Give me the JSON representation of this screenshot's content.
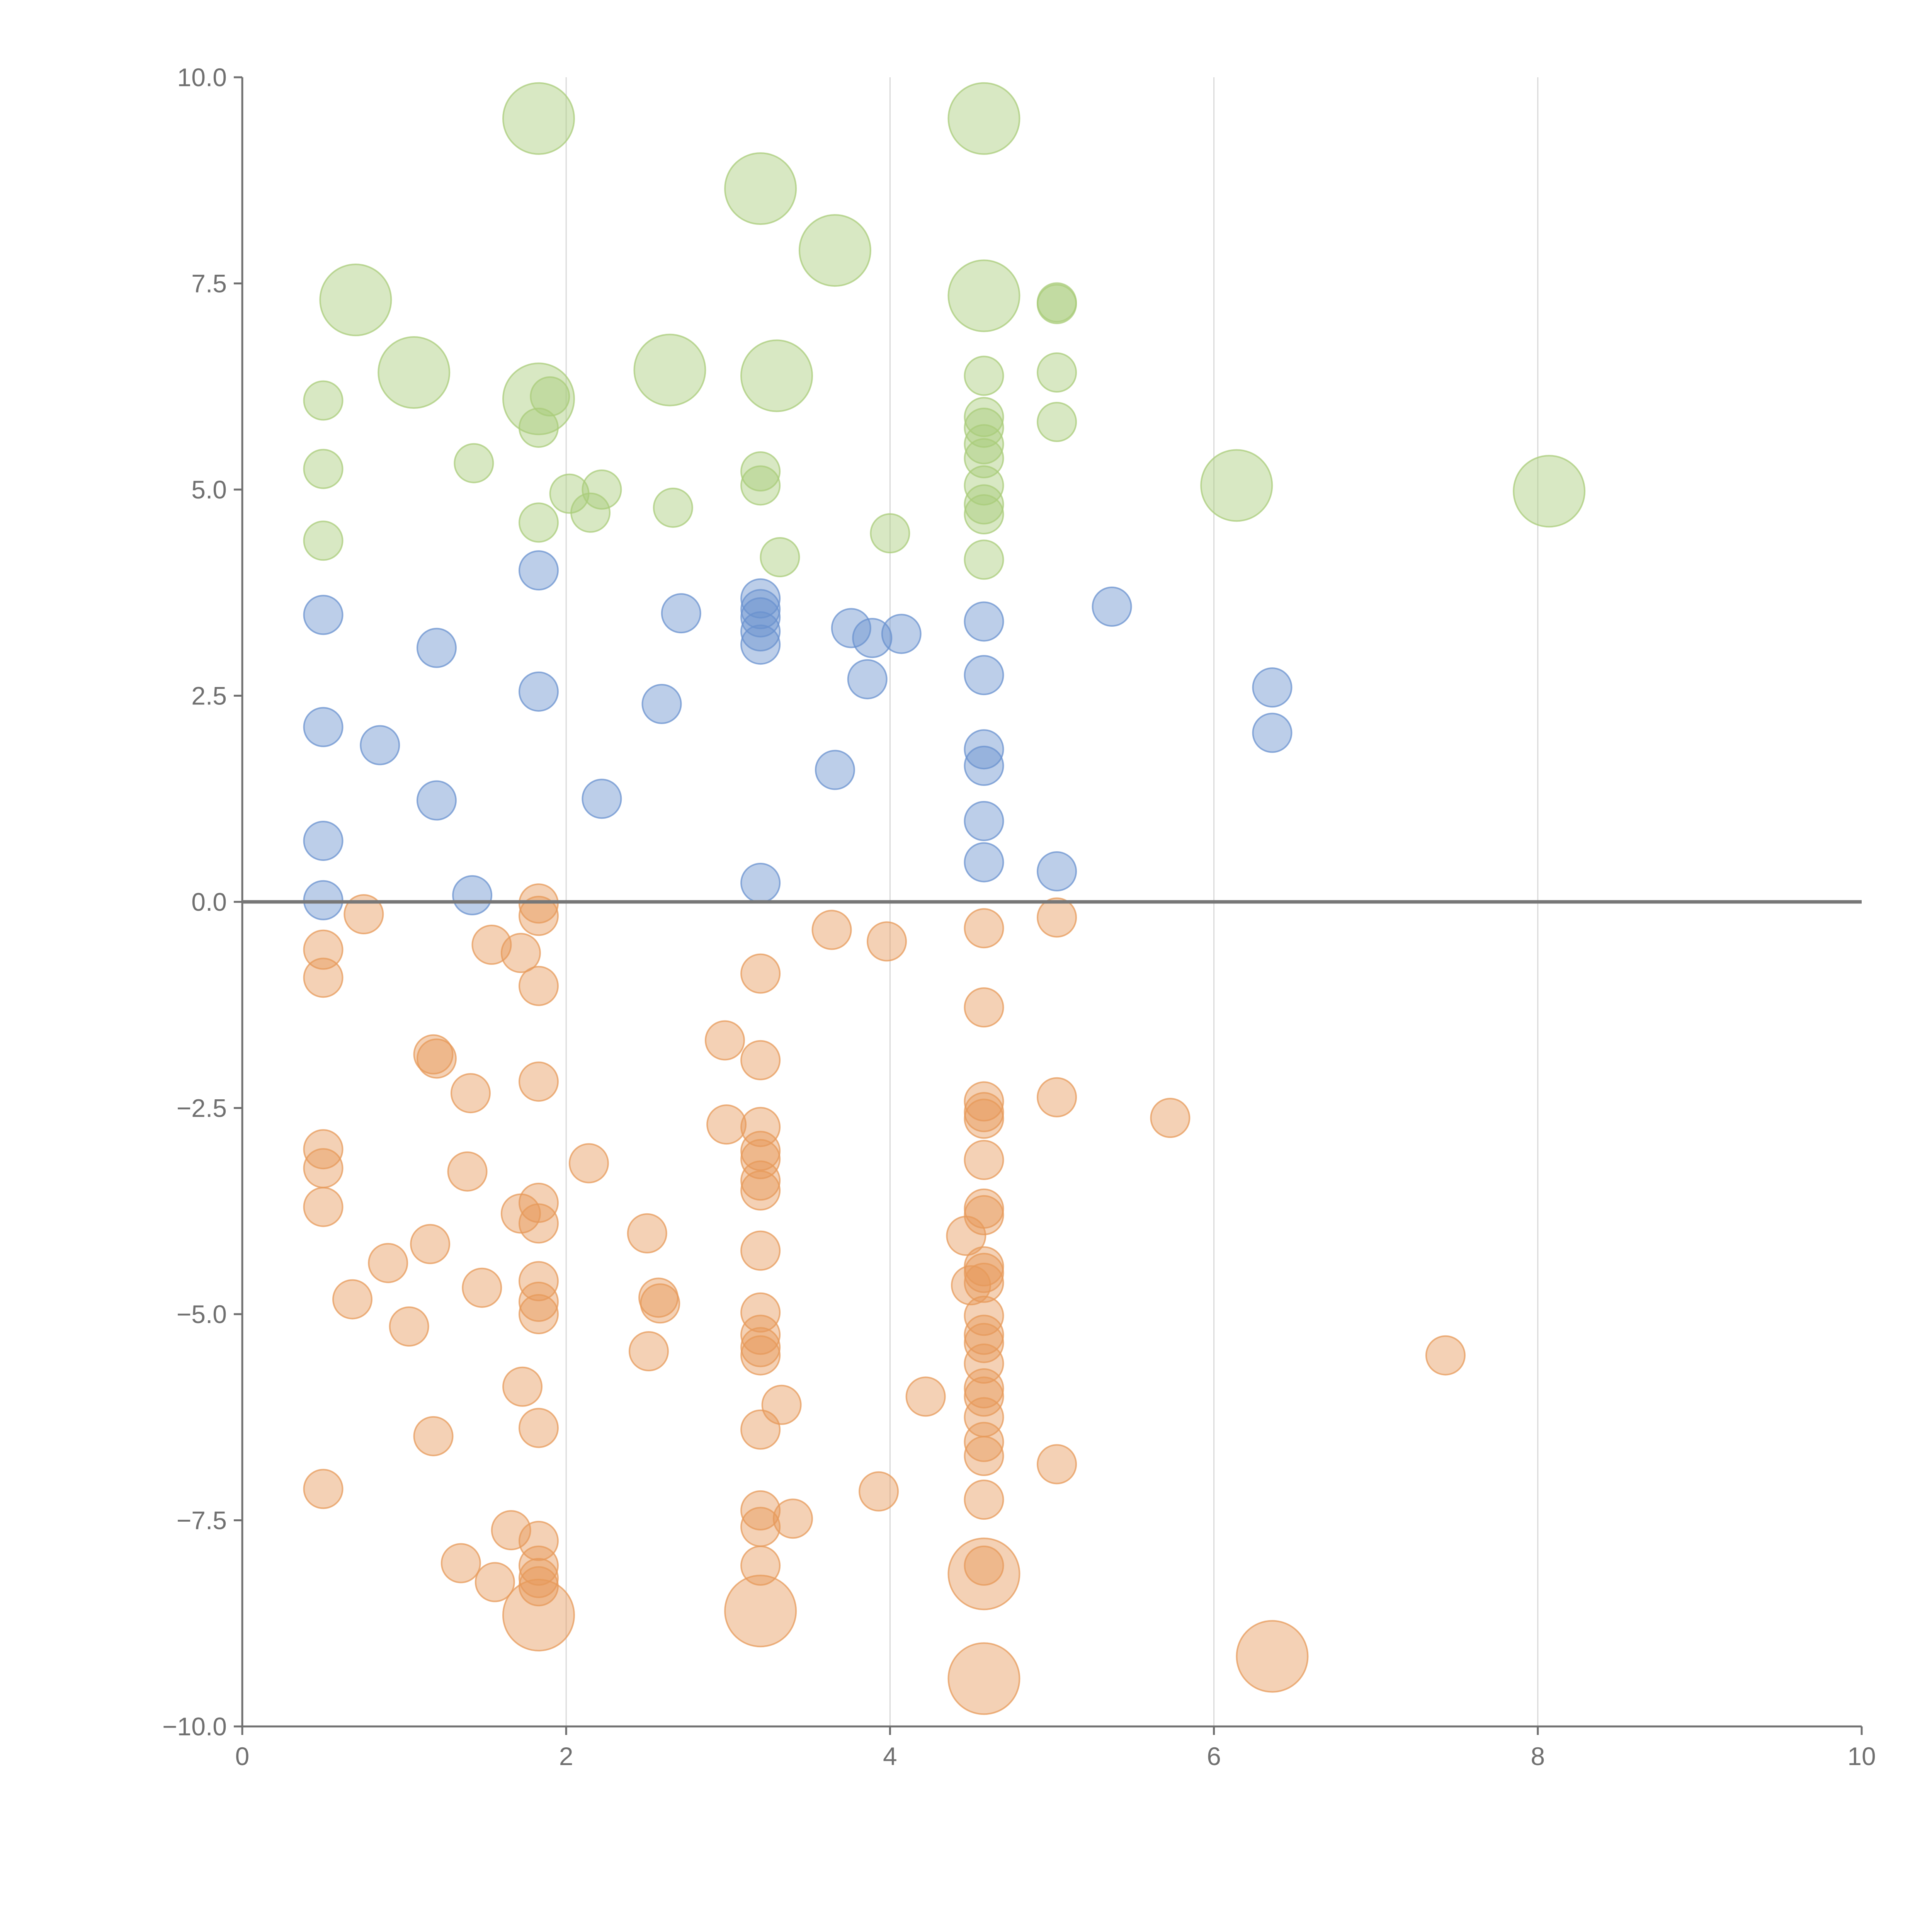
{
  "chart_data": {
    "type": "scatter",
    "title": "",
    "xlabel": "",
    "ylabel": "",
    "xlim": [
      0,
      10
    ],
    "ylim": [
      -10,
      10
    ],
    "grid": "vertical lines at x = 2, 4, 6, 8",
    "zero_line": true,
    "x_ticks": [
      0,
      2,
      4,
      6,
      8,
      10
    ],
    "x_tick_labels": [
      "0",
      "2",
      "4",
      "6",
      "8",
      "10"
    ],
    "y_ticks": [
      10,
      7.5,
      5,
      2.5,
      0,
      -2.5,
      -5,
      -7.5,
      -10
    ],
    "y_tick_labels": [
      "10.0",
      "7.5",
      "5.0",
      "2.5",
      "0.0",
      "−2.5",
      "−5.0",
      "−7.5",
      "−10.0"
    ],
    "colors": {
      "green": "#a9cc79",
      "blue": "#6a92cf",
      "orange": "#e79a5a"
    },
    "series": [
      {
        "name": "green",
        "color": "#a9cc79",
        "points": [
          {
            "x": 1.83,
            "y": 9.5,
            "s": "L"
          },
          {
            "x": 4.58,
            "y": 9.5,
            "s": "L"
          },
          {
            "x": 3.2,
            "y": 8.65,
            "s": "L"
          },
          {
            "x": 3.66,
            "y": 7.9,
            "s": "L"
          },
          {
            "x": 0.7,
            "y": 7.3,
            "s": "L"
          },
          {
            "x": 4.58,
            "y": 7.35,
            "s": "L"
          },
          {
            "x": 1.06,
            "y": 6.42,
            "s": "L"
          },
          {
            "x": 2.64,
            "y": 6.45,
            "s": "L"
          },
          {
            "x": 3.3,
            "y": 6.38,
            "s": "L"
          },
          {
            "x": 1.83,
            "y": 6.1,
            "s": "L"
          },
          {
            "x": 6.14,
            "y": 5.05,
            "s": "L"
          },
          {
            "x": 8.07,
            "y": 4.98,
            "s": "L"
          },
          {
            "x": 5.03,
            "y": 7.27,
            "s": "S"
          },
          {
            "x": 5.03,
            "y": 7.25,
            "s": "S"
          },
          {
            "x": 0.5,
            "y": 6.08,
            "s": "S"
          },
          {
            "x": 4.58,
            "y": 6.38,
            "s": "S"
          },
          {
            "x": 5.03,
            "y": 6.42,
            "s": "S"
          },
          {
            "x": 1.9,
            "y": 6.13,
            "s": "S"
          },
          {
            "x": 1.83,
            "y": 5.75,
            "s": "S"
          },
          {
            "x": 4.58,
            "y": 5.88,
            "s": "S"
          },
          {
            "x": 4.58,
            "y": 5.75,
            "s": "S"
          },
          {
            "x": 5.03,
            "y": 5.82,
            "s": "S"
          },
          {
            "x": 4.58,
            "y": 5.55,
            "s": "S"
          },
          {
            "x": 4.58,
            "y": 5.38,
            "s": "S"
          },
          {
            "x": 0.5,
            "y": 5.25,
            "s": "S"
          },
          {
            "x": 1.43,
            "y": 5.32,
            "s": "S"
          },
          {
            "x": 3.2,
            "y": 5.22,
            "s": "S"
          },
          {
            "x": 3.2,
            "y": 5.05,
            "s": "S"
          },
          {
            "x": 4.58,
            "y": 5.05,
            "s": "S"
          },
          {
            "x": 2.02,
            "y": 4.95,
            "s": "S"
          },
          {
            "x": 2.22,
            "y": 5.0,
            "s": "S"
          },
          {
            "x": 2.15,
            "y": 4.72,
            "s": "S"
          },
          {
            "x": 2.66,
            "y": 4.78,
            "s": "S"
          },
          {
            "x": 4.58,
            "y": 4.82,
            "s": "S"
          },
          {
            "x": 4.58,
            "y": 4.7,
            "s": "S"
          },
          {
            "x": 1.83,
            "y": 4.6,
            "s": "S"
          },
          {
            "x": 4.0,
            "y": 4.47,
            "s": "S"
          },
          {
            "x": 0.5,
            "y": 4.38,
            "s": "S"
          },
          {
            "x": 3.32,
            "y": 4.18,
            "s": "S"
          },
          {
            "x": 4.58,
            "y": 4.15,
            "s": "S"
          }
        ]
      },
      {
        "name": "blue",
        "color": "#6a92cf",
        "points": [
          {
            "x": 1.83,
            "y": 4.02
          },
          {
            "x": 3.2,
            "y": 3.68
          },
          {
            "x": 5.37,
            "y": 3.58
          },
          {
            "x": 3.2,
            "y": 3.55
          },
          {
            "x": 2.71,
            "y": 3.5
          },
          {
            "x": 0.5,
            "y": 3.48
          },
          {
            "x": 3.2,
            "y": 3.45
          },
          {
            "x": 4.58,
            "y": 3.4
          },
          {
            "x": 3.76,
            "y": 3.32
          },
          {
            "x": 3.2,
            "y": 3.28
          },
          {
            "x": 4.07,
            "y": 3.25
          },
          {
            "x": 3.89,
            "y": 3.2
          },
          {
            "x": 3.2,
            "y": 3.12
          },
          {
            "x": 1.2,
            "y": 3.08
          },
          {
            "x": 4.58,
            "y": 2.75
          },
          {
            "x": 3.86,
            "y": 2.7
          },
          {
            "x": 6.36,
            "y": 2.6
          },
          {
            "x": 1.83,
            "y": 2.55
          },
          {
            "x": 2.59,
            "y": 2.4
          },
          {
            "x": 0.5,
            "y": 2.12
          },
          {
            "x": 6.36,
            "y": 2.05
          },
          {
            "x": 0.85,
            "y": 1.9
          },
          {
            "x": 4.58,
            "y": 1.85
          },
          {
            "x": 4.58,
            "y": 1.65
          },
          {
            "x": 3.66,
            "y": 1.6
          },
          {
            "x": 1.2,
            "y": 1.23
          },
          {
            "x": 2.22,
            "y": 1.25
          },
          {
            "x": 4.58,
            "y": 0.98
          },
          {
            "x": 0.5,
            "y": 0.74
          },
          {
            "x": 4.58,
            "y": 0.48
          },
          {
            "x": 5.03,
            "y": 0.37
          },
          {
            "x": 3.2,
            "y": 0.23
          },
          {
            "x": 1.42,
            "y": 0.08
          },
          {
            "x": 0.5,
            "y": 0.02
          }
        ]
      },
      {
        "name": "orange",
        "color": "#e79a5a",
        "points": [
          {
            "x": 1.83,
            "y": -0.02
          },
          {
            "x": 1.83,
            "y": -0.17
          },
          {
            "x": 0.75,
            "y": -0.15
          },
          {
            "x": 5.03,
            "y": -0.19
          },
          {
            "x": 4.58,
            "y": -0.32
          },
          {
            "x": 3.64,
            "y": -0.34
          },
          {
            "x": 3.98,
            "y": -0.48
          },
          {
            "x": 1.54,
            "y": -0.52
          },
          {
            "x": 0.5,
            "y": -0.58
          },
          {
            "x": 1.72,
            "y": -0.62
          },
          {
            "x": 3.2,
            "y": -0.87
          },
          {
            "x": 0.5,
            "y": -0.92
          },
          {
            "x": 1.83,
            "y": -1.02
          },
          {
            "x": 4.58,
            "y": -1.28
          },
          {
            "x": 2.98,
            "y": -1.68
          },
          {
            "x": 1.18,
            "y": -1.85
          },
          {
            "x": 1.2,
            "y": -1.9
          },
          {
            "x": 3.2,
            "y": -1.92
          },
          {
            "x": 1.83,
            "y": -2.18
          },
          {
            "x": 1.41,
            "y": -2.32
          },
          {
            "x": 5.03,
            "y": -2.37
          },
          {
            "x": 4.58,
            "y": -2.42
          },
          {
            "x": 4.58,
            "y": -2.55
          },
          {
            "x": 5.73,
            "y": -2.62
          },
          {
            "x": 4.58,
            "y": -2.63
          },
          {
            "x": 2.99,
            "y": -2.7
          },
          {
            "x": 3.2,
            "y": -2.73
          },
          {
            "x": 0.5,
            "y": -3.0
          },
          {
            "x": 3.2,
            "y": -3.02
          },
          {
            "x": 3.2,
            "y": -3.12
          },
          {
            "x": 4.58,
            "y": -3.13
          },
          {
            "x": 2.14,
            "y": -3.17
          },
          {
            "x": 0.5,
            "y": -3.23
          },
          {
            "x": 1.39,
            "y": -3.27
          },
          {
            "x": 3.2,
            "y": -3.38
          },
          {
            "x": 3.2,
            "y": -3.5
          },
          {
            "x": 1.83,
            "y": -3.65
          },
          {
            "x": 0.5,
            "y": -3.7
          },
          {
            "x": 4.58,
            "y": -3.72
          },
          {
            "x": 4.58,
            "y": -3.8
          },
          {
            "x": 1.72,
            "y": -3.78
          },
          {
            "x": 1.83,
            "y": -3.9
          },
          {
            "x": 2.5,
            "y": -4.02
          },
          {
            "x": 4.47,
            "y": -4.05
          },
          {
            "x": 1.16,
            "y": -4.15
          },
          {
            "x": 3.2,
            "y": -4.23
          },
          {
            "x": 0.9,
            "y": -4.38
          },
          {
            "x": 4.58,
            "y": -4.42
          },
          {
            "x": 4.58,
            "y": -4.5
          },
          {
            "x": 1.83,
            "y": -4.6
          },
          {
            "x": 4.58,
            "y": -4.62
          },
          {
            "x": 4.5,
            "y": -4.65
          },
          {
            "x": 1.48,
            "y": -4.68
          },
          {
            "x": 0.68,
            "y": -4.82
          },
          {
            "x": 1.83,
            "y": -4.85
          },
          {
            "x": 2.57,
            "y": -4.8
          },
          {
            "x": 2.58,
            "y": -4.87
          },
          {
            "x": 4.58,
            "y": -5.02
          },
          {
            "x": 3.2,
            "y": -4.98
          },
          {
            "x": 1.83,
            "y": -5.0
          },
          {
            "x": 1.03,
            "y": -5.15
          },
          {
            "x": 3.2,
            "y": -5.25
          },
          {
            "x": 4.58,
            "y": -5.25
          },
          {
            "x": 4.58,
            "y": -5.35
          },
          {
            "x": 3.2,
            "y": -5.4
          },
          {
            "x": 2.51,
            "y": -5.45
          },
          {
            "x": 7.43,
            "y": -5.5
          },
          {
            "x": 3.2,
            "y": -5.5
          },
          {
            "x": 4.58,
            "y": -5.6
          },
          {
            "x": 1.73,
            "y": -5.88
          },
          {
            "x": 4.58,
            "y": -5.9
          },
          {
            "x": 4.58,
            "y": -6.0
          },
          {
            "x": 4.22,
            "y": -6.0
          },
          {
            "x": 3.33,
            "y": -6.1
          },
          {
            "x": 4.58,
            "y": -6.25
          },
          {
            "x": 1.83,
            "y": -6.38
          },
          {
            "x": 3.2,
            "y": -6.4
          },
          {
            "x": 1.18,
            "y": -6.48
          },
          {
            "x": 4.58,
            "y": -6.55
          },
          {
            "x": 4.58,
            "y": -6.72
          },
          {
            "x": 5.03,
            "y": -6.82
          },
          {
            "x": 0.5,
            "y": -7.12
          },
          {
            "x": 3.93,
            "y": -7.15
          },
          {
            "x": 4.58,
            "y": -7.25
          },
          {
            "x": 3.2,
            "y": -7.38
          },
          {
            "x": 3.4,
            "y": -7.48
          },
          {
            "x": 3.2,
            "y": -7.58
          },
          {
            "x": 1.66,
            "y": -7.62
          },
          {
            "x": 1.83,
            "y": -7.75
          },
          {
            "x": 1.35,
            "y": -8.02
          },
          {
            "x": 3.2,
            "y": -8.05
          },
          {
            "x": 4.58,
            "y": -8.05
          },
          {
            "x": 1.83,
            "y": -8.05
          },
          {
            "x": 1.83,
            "y": -8.2
          },
          {
            "x": 1.56,
            "y": -8.25
          },
          {
            "x": 1.83,
            "y": -8.3
          },
          {
            "x": 4.58,
            "y": -8.15,
            "s": "L"
          },
          {
            "x": 3.2,
            "y": -8.6,
            "s": "L"
          },
          {
            "x": 1.83,
            "y": -8.65,
            "s": "L"
          },
          {
            "x": 6.36,
            "y": -9.15,
            "s": "L"
          },
          {
            "x": 4.58,
            "y": -9.42,
            "s": "L"
          }
        ]
      }
    ]
  }
}
